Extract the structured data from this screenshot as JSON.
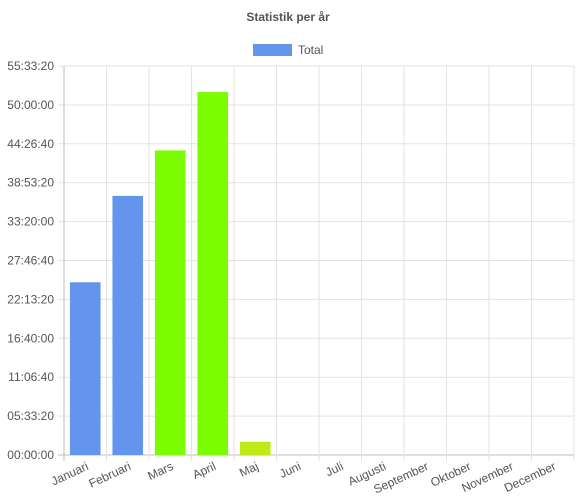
{
  "chart_data": {
    "type": "bar",
    "title": "Statistik per år",
    "legend": {
      "position": "top",
      "entries": [
        {
          "label": "Total",
          "color": "#6495ED"
        }
      ]
    },
    "categories": [
      "Januari",
      "Februari",
      "Mars",
      "April",
      "Maj",
      "Juni",
      "Juli",
      "Augusti",
      "September",
      "Oktober",
      "November",
      "December"
    ],
    "values_seconds": [
      88800,
      133200,
      156600,
      186600,
      6800,
      0,
      0,
      0,
      0,
      0,
      0,
      0
    ],
    "bar_colors": [
      "#6495ED",
      "#6495ED",
      "#7CFC00",
      "#7CFC00",
      "#BFEA16",
      "#6495ED",
      "#6495ED",
      "#6495ED",
      "#6495ED",
      "#6495ED",
      "#6495ED",
      "#6495ED"
    ],
    "ylim": [
      0,
      200000
    ],
    "y_ticks": [
      {
        "value": 0,
        "label": "00:00:00"
      },
      {
        "value": 20000,
        "label": "05:33:20"
      },
      {
        "value": 40000,
        "label": "11:06:40"
      },
      {
        "value": 60000,
        "label": "16:40:00"
      },
      {
        "value": 80000,
        "label": "22:13:20"
      },
      {
        "value": 100000,
        "label": "27:46:40"
      },
      {
        "value": 120000,
        "label": "33:20:00"
      },
      {
        "value": 140000,
        "label": "38:53:20"
      },
      {
        "value": 160000,
        "label": "44:26:40"
      },
      {
        "value": 180000,
        "label": "50:00:00"
      },
      {
        "value": 200000,
        "label": "55:33:20"
      }
    ],
    "grid": true
  }
}
